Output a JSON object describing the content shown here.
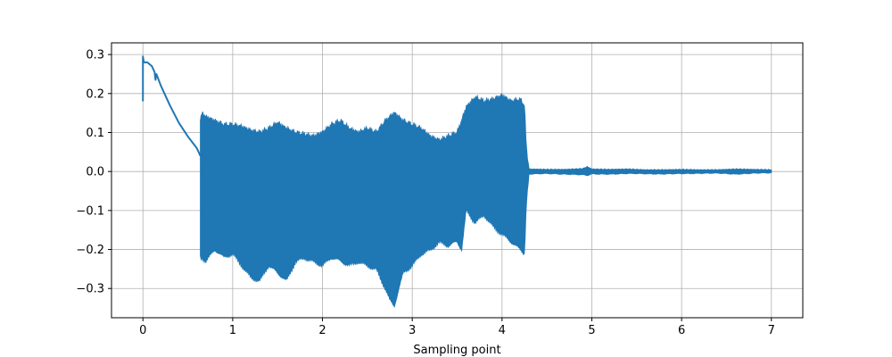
{
  "chart_data": {
    "type": "line",
    "title": "",
    "xlabel": "Sampling point",
    "ylabel": "",
    "xlim": [
      -0.35,
      7.35
    ],
    "ylim": [
      -0.375,
      0.33
    ],
    "grid": true,
    "xticks": [
      0,
      1,
      2,
      3,
      4,
      5,
      6,
      7
    ],
    "xtick_labels": [
      "0",
      "1",
      "2",
      "3",
      "4",
      "5",
      "6",
      "7"
    ],
    "yticks": [
      0.3,
      0.2,
      0.1,
      0.0,
      -0.1,
      -0.2,
      -0.3
    ],
    "ytick_labels": [
      "0.3",
      "0.2",
      "0.1",
      "0.0",
      "−0.1",
      "−0.2",
      "−0.3"
    ],
    "series": [
      {
        "color": "#1f77b4",
        "pre_segment": {
          "x": [
            0.0,
            0.0,
            0.01,
            0.05,
            0.1,
            0.13,
            0.14,
            0.15,
            0.2,
            0.3,
            0.4,
            0.5,
            0.55,
            0.6,
            0.64
          ],
          "y": [
            0.18,
            0.295,
            0.28,
            0.28,
            0.27,
            0.255,
            0.235,
            0.25,
            0.22,
            0.17,
            0.125,
            0.09,
            0.075,
            0.06,
            0.04
          ]
        },
        "envelope": {
          "x": [
            0.64,
            0.66,
            0.7,
            0.8,
            0.9,
            1.0,
            1.1,
            1.2,
            1.3,
            1.4,
            1.5,
            1.6,
            1.7,
            1.8,
            1.9,
            2.0,
            2.1,
            2.2,
            2.3,
            2.4,
            2.5,
            2.6,
            2.7,
            2.75,
            2.8,
            2.85,
            2.9,
            3.0,
            3.1,
            3.2,
            3.3,
            3.4,
            3.5,
            3.55,
            3.6,
            3.7,
            3.8,
            3.9,
            4.0,
            4.1,
            4.2,
            4.25,
            4.27,
            4.3
          ],
          "upper": [
            0.13,
            0.15,
            0.14,
            0.13,
            0.12,
            0.12,
            0.115,
            0.105,
            0.1,
            0.11,
            0.125,
            0.11,
            0.1,
            0.095,
            0.09,
            0.1,
            0.12,
            0.13,
            0.11,
            0.1,
            0.11,
            0.1,
            0.13,
            0.14,
            0.15,
            0.14,
            0.13,
            0.12,
            0.11,
            0.09,
            0.08,
            0.09,
            0.1,
            0.13,
            0.165,
            0.19,
            0.18,
            0.185,
            0.195,
            0.18,
            0.185,
            0.17,
            0.06,
            0.008
          ],
          "lower": [
            -0.22,
            -0.22,
            -0.23,
            -0.2,
            -0.22,
            -0.21,
            -0.24,
            -0.27,
            -0.28,
            -0.24,
            -0.26,
            -0.28,
            -0.23,
            -0.22,
            -0.23,
            -0.24,
            -0.22,
            -0.23,
            -0.24,
            -0.23,
            -0.24,
            -0.25,
            -0.3,
            -0.33,
            -0.345,
            -0.3,
            -0.26,
            -0.24,
            -0.21,
            -0.2,
            -0.18,
            -0.19,
            -0.18,
            -0.2,
            -0.1,
            -0.13,
            -0.11,
            -0.14,
            -0.16,
            -0.18,
            -0.2,
            -0.21,
            -0.08,
            -0.008
          ]
        },
        "noise_segment": {
          "x": [
            4.3,
            4.5,
            4.7,
            4.9,
            4.95,
            5.0,
            5.2,
            5.4,
            5.6,
            5.8,
            6.0,
            6.2,
            6.4,
            6.6,
            6.8,
            7.0
          ],
          "upper": [
            0.006,
            0.005,
            0.005,
            0.007,
            0.012,
            0.006,
            0.005,
            0.006,
            0.004,
            0.004,
            0.005,
            0.004,
            0.004,
            0.006,
            0.005,
            0.004
          ],
          "lower": [
            -0.006,
            -0.005,
            -0.006,
            -0.008,
            -0.01,
            -0.006,
            -0.006,
            -0.005,
            -0.005,
            -0.006,
            -0.005,
            -0.004,
            -0.004,
            -0.006,
            -0.004,
            -0.003
          ]
        }
      }
    ]
  }
}
